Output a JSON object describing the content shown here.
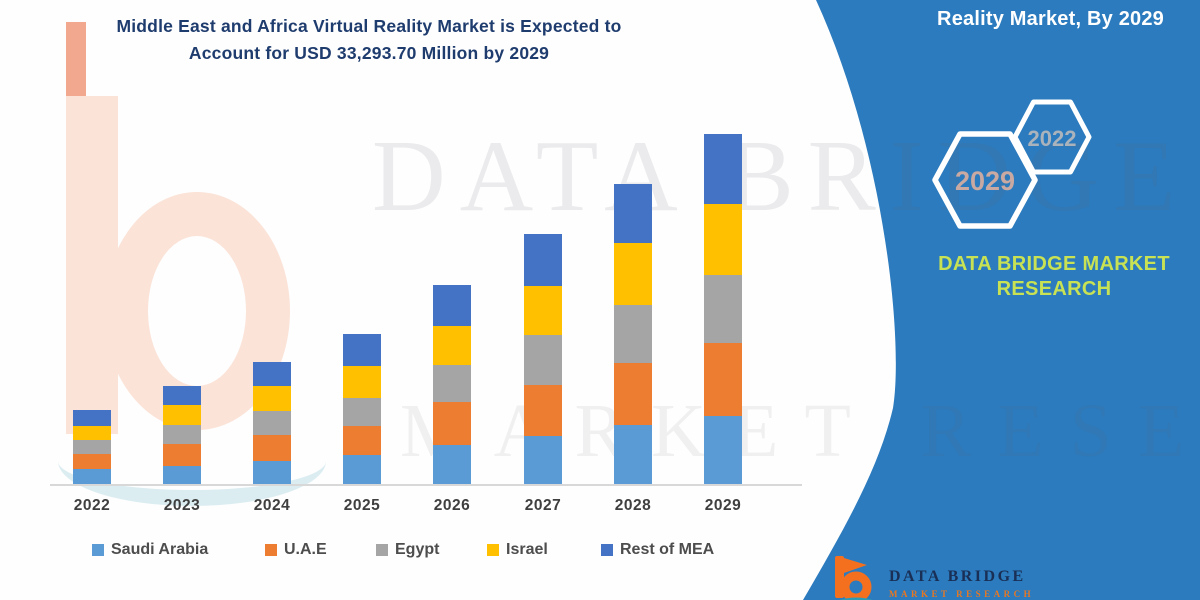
{
  "title": {
    "line1": "Middle East and Africa Virtual Reality Market is Expected to",
    "line2": "Account for USD 33,293.70 Million by 2029"
  },
  "panel": {
    "header": "Reality Market, By 2029",
    "hexagons": [
      {
        "label": "2029",
        "text_color": "#C9A9A2"
      },
      {
        "label": "2022",
        "text_color": "#AAB3BC"
      }
    ],
    "brand_line1": "DATA BRIDGE MARKET",
    "brand_line2": "RESEARCH",
    "logo": {
      "text": "DATA BRIDGE",
      "subtext": "MARKET RESEARCH"
    }
  },
  "watermark": {
    "line1": "DATA BRIDGE",
    "line2": "MARKET RESEARCH"
  },
  "colors": {
    "panel_blue": "#2B7BBE",
    "title_navy": "#1F3C6E",
    "brand_green": "#C8E254",
    "axis_gray": "#D8D8D8",
    "label_gray": "#4D4D4D",
    "logo_orange": "#F4701F",
    "logo_teal": "#2E9BB5",
    "watermark_peach": "#FBE3D8"
  },
  "chart_data": {
    "type": "bar",
    "stacked": true,
    "unit": "USD Million",
    "title": "Middle East and Africa Virtual Reality Market is Expected to Account for USD 33,293.70 Million by 2029",
    "xlabel": "",
    "ylabel": "",
    "gridlines": false,
    "legend_position": "bottom",
    "total_2029": 33293.7,
    "categories": [
      "2022",
      "2023",
      "2024",
      "2025",
      "2026",
      "2027",
      "2028",
      "2029"
    ],
    "series": [
      {
        "name": "Saudi Arabia",
        "color": "#5B9BD5",
        "values": [
          1425,
          1680,
          2185,
          2755,
          3705,
          4585,
          5600,
          6455
        ]
      },
      {
        "name": "U.A.E",
        "color": "#ED7D31",
        "values": [
          1425,
          2115,
          2470,
          2780,
          4110,
          4815,
          5915,
          6900
        ]
      },
      {
        "name": "Egypt",
        "color": "#A5A5A5",
        "values": [
          1350,
          1775,
          2280,
          2630,
          3485,
          4745,
          5480,
          6485
        ]
      },
      {
        "name": "Israel",
        "color": "#FFC000",
        "values": [
          1330,
          1900,
          2375,
          3010,
          3730,
          4625,
          5860,
          6805
        ]
      },
      {
        "name": "Rest of MEA",
        "color": "#4472C4",
        "values": [
          1520,
          1830,
          2305,
          3065,
          3865,
          4965,
          5695,
          6648.7
        ]
      }
    ],
    "estimated_totals": [
      7050,
      9300,
      11615,
      14240,
      18895,
      23735,
      28550,
      33293.7
    ]
  }
}
